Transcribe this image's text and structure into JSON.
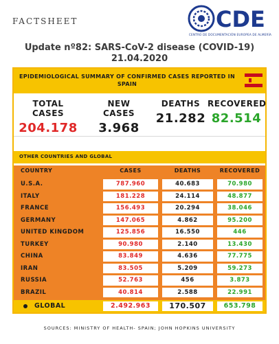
{
  "factsheet_label": "FACTSHEET",
  "logo": {
    "text": "CDE",
    "subtitle": "CENTRO DE DOCUMENTACIÓN EUROPEA DE ALMERÍA"
  },
  "title": {
    "line1": "Update nº82: SARS-CoV-2 disease (COVID-19)",
    "line2": "21.04.2020"
  },
  "spain": {
    "header": "EPIDEMIOLOGICAL SUMMARY OF CONFIRMED CASES REPORTED IN SPAIN",
    "stats": [
      {
        "label": "TOTAL CASES",
        "value": "204.178",
        "color": "#e02828"
      },
      {
        "label": "NEW CASES",
        "value": "3.968",
        "color": "#1c1c1c"
      },
      {
        "label": "DEATHS",
        "value": "21.282",
        "color": "#1c1c1c"
      },
      {
        "label": "RECOVERED",
        "value": "82.514",
        "color": "#2aa52a"
      }
    ]
  },
  "other": {
    "header": "OTHER COUNTRIES AND GLOBAL",
    "columns": {
      "country": "COUNTRY",
      "cases": "CASES",
      "deaths": "DEATHS",
      "recovered": "RECOVERED"
    },
    "rows": [
      {
        "country": "U.S.A.",
        "cases": "787.960",
        "deaths": "40.683",
        "recovered": "70.980"
      },
      {
        "country": "ITALY",
        "cases": "181.228",
        "deaths": "24.114",
        "recovered": "48.877"
      },
      {
        "country": "FRANCE",
        "cases": "156.493",
        "deaths": "20.294",
        "recovered": "38.046"
      },
      {
        "country": "GERMANY",
        "cases": "147.065",
        "deaths": "4.862",
        "recovered": "95.200"
      },
      {
        "country": "UNITED KINGDOM",
        "cases": "125.856",
        "deaths": "16.550",
        "recovered": "446"
      },
      {
        "country": "TURKEY",
        "cases": "90.980",
        "deaths": "2.140",
        "recovered": "13.430"
      },
      {
        "country": "CHINA",
        "cases": "83.849",
        "deaths": "4.636",
        "recovered": "77.775"
      },
      {
        "country": "IRAN",
        "cases": "83.505",
        "deaths": "5.209",
        "recovered": "59.273"
      },
      {
        "country": "RUSSIA",
        "cases": "52.763",
        "deaths": "456",
        "recovered": "3.873"
      },
      {
        "country": "BRAZIL",
        "cases": "40.814",
        "deaths": "2.588",
        "recovered": "22.991"
      }
    ],
    "global": {
      "country": "GLOBAL",
      "cases": "2.492.963",
      "deaths": "170.507",
      "recovered": "653.798"
    }
  },
  "sources": "SOURCES: MINISTRY OF HEALTH- SPAIN; JOHN HOPKINS UNIVERSITY",
  "colors": {
    "accent_yellow": "#f7c300",
    "table_orange": "#ee8326",
    "cases_red": "#e02828",
    "recovered_green": "#2aa52a",
    "logo_blue": "#1d3a8f"
  }
}
